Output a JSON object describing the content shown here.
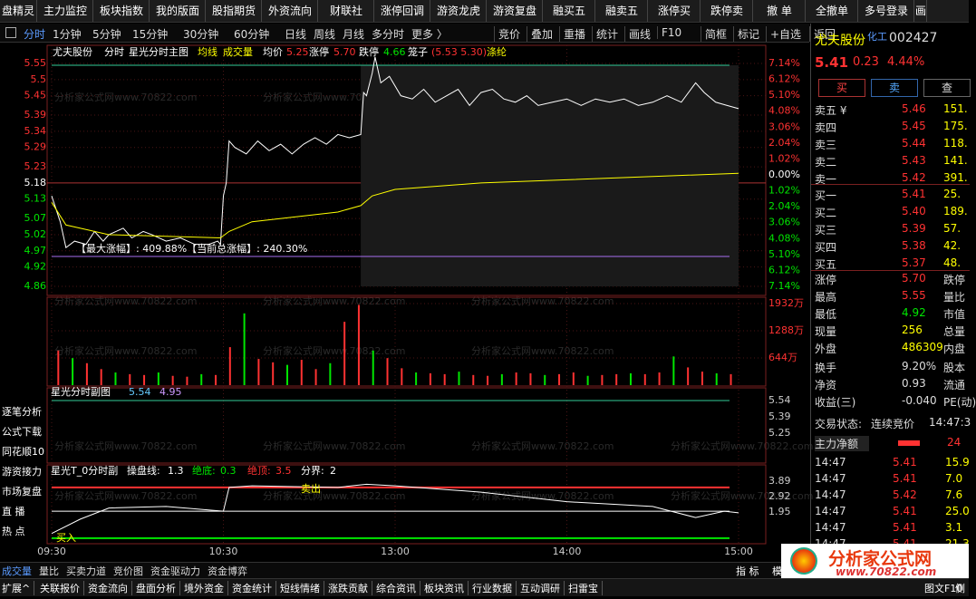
{
  "toolbar": [
    "盘精灵",
    "主力监控",
    "板块指数",
    "我的版面",
    "股指期货",
    "外资流向",
    "财联社",
    "涨停回调",
    "游资龙虎",
    "游资复盘",
    "融买五",
    "融卖五",
    "涨停买",
    "跌停卖",
    "撤 单",
    "全撤单",
    "多号登录",
    "画"
  ],
  "period_tabs": [
    "分时",
    "1分钟",
    "5分钟",
    "15分钟",
    "30分钟",
    "60分钟",
    "日线",
    "周线",
    "月线",
    "多分时",
    "更多 〉"
  ],
  "tools": [
    "竞价",
    "叠加",
    "重播",
    "统计",
    "画线",
    "F10",
    "简框",
    "标记",
    "+自选",
    "返回"
  ],
  "watermark": "分析家公式网www.70822.com",
  "main_chart": {
    "name": "尤夫股份",
    "period": "分时",
    "indicator": "星光分时主图",
    "avg_line": "均线",
    "vol_line": "成交量",
    "avg_label": "均价",
    "avg_price": "5.25",
    "up_label": "涨停",
    "up_price": "5.70",
    "down_label": "跌停",
    "down_price": "4.66",
    "cage_label": "笼子",
    "cage": "(5.53 5.30)",
    "concept": "涤纶",
    "annotation": "【最大涨幅】: 409.88%【当前总涨幅】: 240.30%",
    "price_ticks": [
      5.55,
      5.5,
      5.45,
      5.39,
      5.34,
      5.29,
      5.23,
      5.18,
      5.13,
      5.07,
      5.02,
      4.97,
      4.92,
      4.86
    ],
    "pct_ticks": [
      "7.14%",
      "6.12%",
      "5.10%",
      "4.08%",
      "3.06%",
      "2.04%",
      "1.02%",
      "0.00%",
      "1.02%",
      "2.04%",
      "3.06%",
      "4.08%",
      "5.10%",
      "6.12%",
      "7.14%"
    ],
    "minutes": [
      0,
      3,
      5,
      8,
      12,
      15,
      18,
      20,
      25,
      28,
      32,
      35,
      40,
      45,
      50,
      55,
      58,
      59,
      60,
      61,
      62,
      64,
      68,
      72,
      76,
      80,
      84,
      88,
      92,
      96,
      100,
      104,
      108,
      109,
      110,
      112,
      113,
      115,
      118,
      122,
      126,
      130,
      134,
      138,
      142,
      146,
      150,
      154,
      158,
      162,
      166,
      170,
      175,
      180,
      185,
      190,
      195,
      200,
      205,
      210,
      215,
      220,
      225,
      228,
      232,
      236,
      240
    ],
    "price": [
      5.14,
      5.06,
      4.98,
      5.0,
      4.99,
      5.03,
      5.0,
      5.02,
      5.04,
      5.01,
      5.03,
      5.02,
      5.0,
      5.01,
      4.99,
      4.99,
      5.0,
      4.99,
      5.14,
      5.18,
      5.31,
      5.29,
      5.27,
      5.31,
      5.28,
      5.3,
      5.27,
      5.3,
      5.32,
      5.3,
      5.33,
      5.32,
      5.33,
      5.46,
      5.45,
      5.52,
      5.57,
      5.49,
      5.51,
      5.45,
      5.44,
      5.47,
      5.43,
      5.45,
      5.47,
      5.42,
      5.46,
      5.47,
      5.44,
      5.43,
      5.45,
      5.42,
      5.43,
      5.44,
      5.42,
      5.44,
      5.43,
      5.44,
      5.42,
      5.43,
      5.45,
      5.43,
      5.49,
      5.46,
      5.43,
      5.42,
      5.41
    ],
    "avg_minutes": [
      0,
      5,
      20,
      59,
      62,
      70,
      100,
      108,
      112,
      120,
      150,
      180,
      210,
      240
    ],
    "avg": [
      5.12,
      5.05,
      5.02,
      5.01,
      5.03,
      5.06,
      5.09,
      5.11,
      5.14,
      5.16,
      5.18,
      5.19,
      5.2,
      5.21
    ],
    "vol_ticks": [
      {
        "value": 1932,
        "label": "1932万"
      },
      {
        "value": 1288,
        "label": "1288万"
      },
      {
        "value": 644,
        "label": "644万"
      }
    ],
    "volume": [
      820,
      640,
      520,
      380,
      300,
      260,
      240,
      300,
      220,
      200,
      260,
      240,
      900,
      1700,
      620,
      540,
      480,
      600,
      380,
      520,
      1500,
      1900,
      820,
      640,
      400,
      300,
      280,
      260,
      320,
      240,
      220,
      260,
      300,
      280,
      240,
      260,
      300,
      220,
      240,
      260,
      280,
      260,
      300,
      680,
      420,
      320,
      280,
      260
    ],
    "time_ticks": [
      "09:30",
      "10:30",
      "13:00",
      "14:00",
      "15:00"
    ]
  },
  "sub1": {
    "title": "星光分时副图",
    "v1": "5.54",
    "v2": "4.95",
    "ticks": [
      "5.54",
      "5.39",
      "5.25"
    ]
  },
  "sub2": {
    "title": "星光T_0分时副",
    "line_label": "操盘线:",
    "line_value": 1.3,
    "bottom_label": "绝底:",
    "bottom": 0.3,
    "top_label": "绝顶:",
    "top": 3.5,
    "split_label": "分界:",
    "split": 2.0,
    "ticks": [
      3.89,
      2.92,
      1.95
    ],
    "sell": "卖出",
    "buy": "买入",
    "minutes": [
      0,
      10,
      20,
      40,
      60,
      62,
      70,
      100,
      110,
      120,
      150,
      180,
      210,
      225,
      235,
      240
    ],
    "values": [
      0.6,
      1.5,
      2.2,
      2.3,
      2.0,
      3.5,
      3.6,
      3.5,
      3.7,
      3.6,
      3.2,
      2.6,
      2.3,
      1.6,
      2.0,
      1.9
    ]
  },
  "left_menu": [
    "逐笔分析",
    "公式下载",
    "同花顺10",
    "游资接力",
    "市场复盘",
    "直 播",
    "热 点"
  ],
  "bottom_tabs": [
    "成交量",
    "量比",
    "买卖力道",
    "竞价图",
    "资金驱动力",
    "资金博弈"
  ],
  "bottom_right": [
    "指 标",
    "模 板"
  ],
  "bottom_bar": [
    "扩展^",
    "关联报价",
    "资金流向",
    "盘面分析",
    "境外资金",
    "资金统计",
    "短线情绪",
    "涨跌贡献",
    "综合资讯",
    "板块资讯",
    "行业数据",
    "互动调研",
    "扫雷宝"
  ],
  "bottom_bar_right": [
    "图文F10",
    "侧"
  ],
  "quote": {
    "name": "尤夫股份",
    "sector": "化工",
    "code": "002427",
    "price": "5.41",
    "change": "0.23",
    "pct": "4.44%",
    "buttons": [
      "买",
      "卖",
      "查"
    ],
    "asks": [
      [
        "卖五 ¥",
        "5.46",
        "151."
      ],
      [
        "卖四",
        "5.45",
        "175."
      ],
      [
        "卖三",
        "5.44",
        "118."
      ],
      [
        "卖二",
        "5.43",
        "141."
      ],
      [
        "卖一",
        "5.42",
        "391."
      ]
    ],
    "bids": [
      [
        "买一",
        "5.41",
        "25."
      ],
      [
        "买二",
        "5.40",
        "189."
      ],
      [
        "买三",
        "5.39",
        "57."
      ],
      [
        "买四",
        "5.38",
        "42."
      ],
      [
        "买五",
        "5.37",
        "48."
      ]
    ],
    "stats": [
      [
        "涨停",
        "5.70",
        "跌停"
      ],
      [
        "最高",
        "5.55",
        "量比"
      ],
      [
        "最低",
        "4.92",
        "市值"
      ],
      [
        "现量",
        "256",
        "总量"
      ],
      [
        "外盘",
        "486309",
        "内盘"
      ]
    ],
    "stats2": [
      [
        "换手",
        "9.20%",
        "股本"
      ],
      [
        "净资",
        "0.93",
        "流通"
      ],
      [
        "收益(三)",
        "-0.040",
        "PE(动)"
      ]
    ],
    "status_label": "交易状态:",
    "status": "连续竞价",
    "status_time": "14:47:3",
    "main_net_label": "主力净额",
    "main_net": "24",
    "trades": [
      [
        "14:47",
        "5.41",
        "15.9"
      ],
      [
        "14:47",
        "5.41",
        "7.0"
      ],
      [
        "14:47",
        "5.42",
        "7.6"
      ],
      [
        "14:47",
        "5.41",
        "25.0"
      ],
      [
        "14:47",
        "5.41",
        "3.1"
      ],
      [
        "14:47",
        "5.41",
        "21.3"
      ]
    ]
  },
  "logo": {
    "title": "分析家公式网",
    "url": "www.70822.com"
  }
}
